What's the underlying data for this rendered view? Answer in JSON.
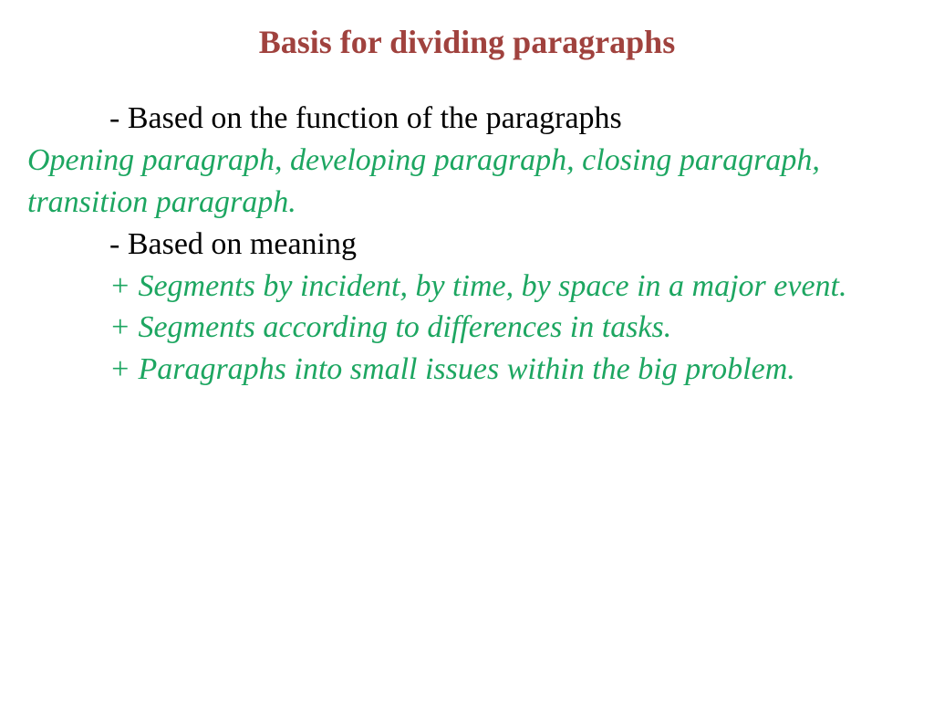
{
  "slide": {
    "title": "Basis for dividing paragraphs",
    "bullet1": "- Based on the function of the paragraphs",
    "detail1": "Opening paragraph, developing paragraph, closing paragraph, transition paragraph.",
    "bullet2": "- Based on meaning",
    "sub1": "+ Segments by incident, by time, by space in a major event.",
    "sub2": "+ Segments according to differences in tasks.",
    "sub3": "+ Paragraphs into small issues within the big problem."
  },
  "colors": {
    "title": "#a0423e",
    "body": "#000000",
    "accent": "#1da661",
    "background": "#ffffff"
  },
  "typography": {
    "title_fontsize": 36,
    "body_fontsize": 34,
    "font_family": "Times New Roman"
  }
}
